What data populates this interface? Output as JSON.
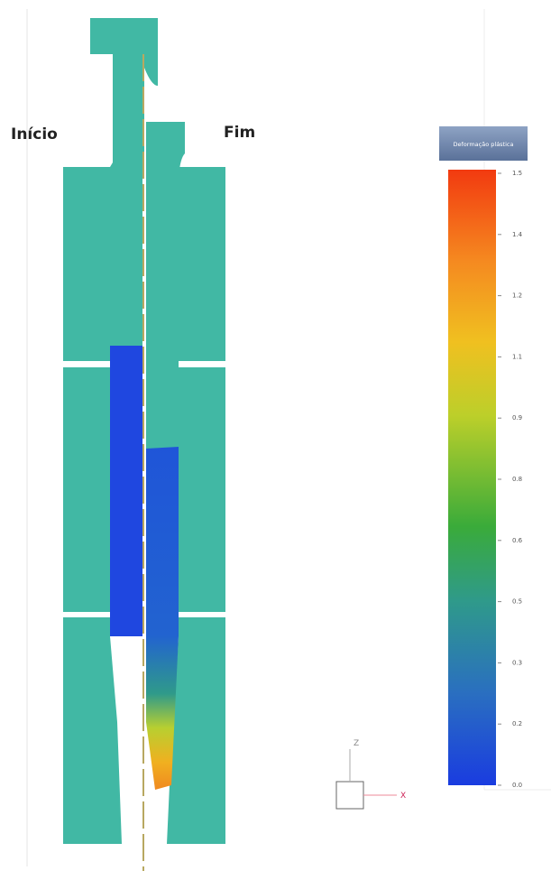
{
  "labels": {
    "start": "Início",
    "end": "Fim"
  },
  "colorbar": {
    "title": "Deformação plástica",
    "ticks": [
      "0.0",
      "0.2",
      "0.3",
      "0.5",
      "0.6",
      "0.8",
      "0.9",
      "1.1",
      "1.2",
      "1.4",
      "1.5"
    ]
  },
  "axes": {
    "z": "Z",
    "x": "X"
  }
}
